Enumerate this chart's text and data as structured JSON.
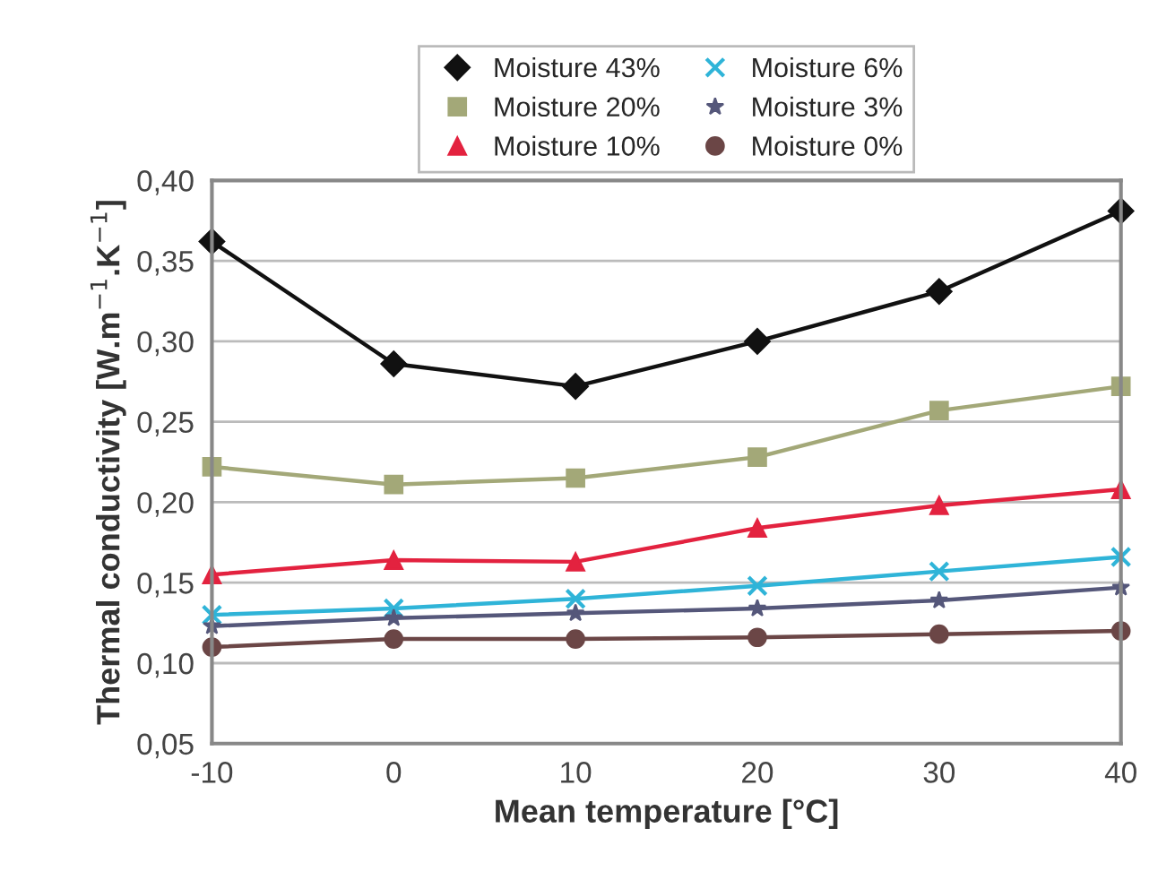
{
  "chart_data": {
    "type": "line",
    "xlabel": "Mean temperature [°C]",
    "ylabel": "Thermal conductivity [W.m$^{−1}$.K$^{−1}$]",
    "x": [
      -10,
      0,
      10,
      20,
      30,
      40
    ],
    "series": [
      {
        "name": "Moisture 43%",
        "color": "#111111",
        "marker": "diamond",
        "values": [
          0.362,
          0.286,
          0.272,
          0.3,
          0.331,
          0.381
        ]
      },
      {
        "name": "Moisture 20%",
        "color": "#a3a878",
        "marker": "square",
        "values": [
          0.222,
          0.211,
          0.215,
          0.228,
          0.257,
          0.272
        ]
      },
      {
        "name": "Moisture 10%",
        "color": "#e3223f",
        "marker": "triangle",
        "values": [
          0.155,
          0.164,
          0.163,
          0.184,
          0.198,
          0.208
        ]
      },
      {
        "name": "Moisture 6%",
        "color": "#2fb4d8",
        "marker": "cross",
        "values": [
          0.13,
          0.134,
          0.14,
          0.148,
          0.157,
          0.166
        ]
      },
      {
        "name": "Moisture 3%",
        "color": "#55577a",
        "marker": "star",
        "values": [
          0.123,
          0.128,
          0.131,
          0.134,
          0.139,
          0.147
        ]
      },
      {
        "name": "Moisture 0%",
        "color": "#6b4646",
        "marker": "circle",
        "values": [
          0.11,
          0.115,
          0.115,
          0.116,
          0.118,
          0.12
        ]
      }
    ],
    "xlim": [
      -10,
      40
    ],
    "xticks": [
      -10,
      0,
      10,
      20,
      30,
      40
    ],
    "ylim": [
      0.05,
      0.4
    ],
    "yticks": [
      {
        "value": 0.05,
        "label": "0,05"
      },
      {
        "value": 0.1,
        "label": "0,10"
      },
      {
        "value": 0.15,
        "label": "0,15"
      },
      {
        "value": 0.2,
        "label": "0,20"
      },
      {
        "value": 0.25,
        "label": "0,25"
      },
      {
        "value": 0.3,
        "label": "0,30"
      },
      {
        "value": 0.35,
        "label": "0,35"
      },
      {
        "value": 0.4,
        "label": "0,40"
      }
    ],
    "grid": "y",
    "legend": "top",
    "line_style": "solid"
  }
}
